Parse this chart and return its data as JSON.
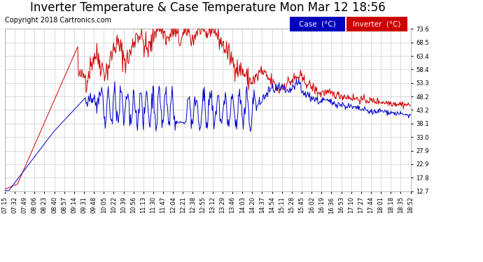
{
  "title": "Inverter Temperature & Case Temperature Mon Mar 12 18:56",
  "copyright": "Copyright 2018 Cartronics.com",
  "legend_case_label": "Case  (°C)",
  "legend_inv_label": "Inverter  (°C)",
  "case_color": "#0000cc",
  "inv_color": "#cc0000",
  "legend_case_bg": "#0000bb",
  "legend_inv_bg": "#cc0000",
  "background_color": "#ffffff",
  "grid_color": "#cccccc",
  "yticks": [
    12.7,
    17.8,
    22.9,
    27.9,
    33.0,
    38.1,
    43.2,
    48.2,
    53.3,
    58.4,
    63.4,
    68.5,
    73.6
  ],
  "xtick_labels": [
    "07:15",
    "07:32",
    "07:49",
    "08:06",
    "08:23",
    "08:40",
    "08:57",
    "09:14",
    "09:31",
    "09:48",
    "10:05",
    "10:22",
    "10:39",
    "10:56",
    "11:13",
    "11:30",
    "11:47",
    "12:04",
    "12:21",
    "12:38",
    "12:55",
    "13:12",
    "13:29",
    "13:46",
    "14:03",
    "14:20",
    "14:37",
    "14:54",
    "15:11",
    "15:28",
    "15:45",
    "16:02",
    "16:19",
    "16:36",
    "16:53",
    "17:10",
    "17:27",
    "17:44",
    "18:01",
    "18:18",
    "18:35",
    "18:52"
  ],
  "title_fontsize": 12,
  "copyright_fontsize": 7,
  "tick_fontsize": 6,
  "legend_fontsize": 7.5,
  "ymin": 12.7,
  "ymax": 73.6
}
